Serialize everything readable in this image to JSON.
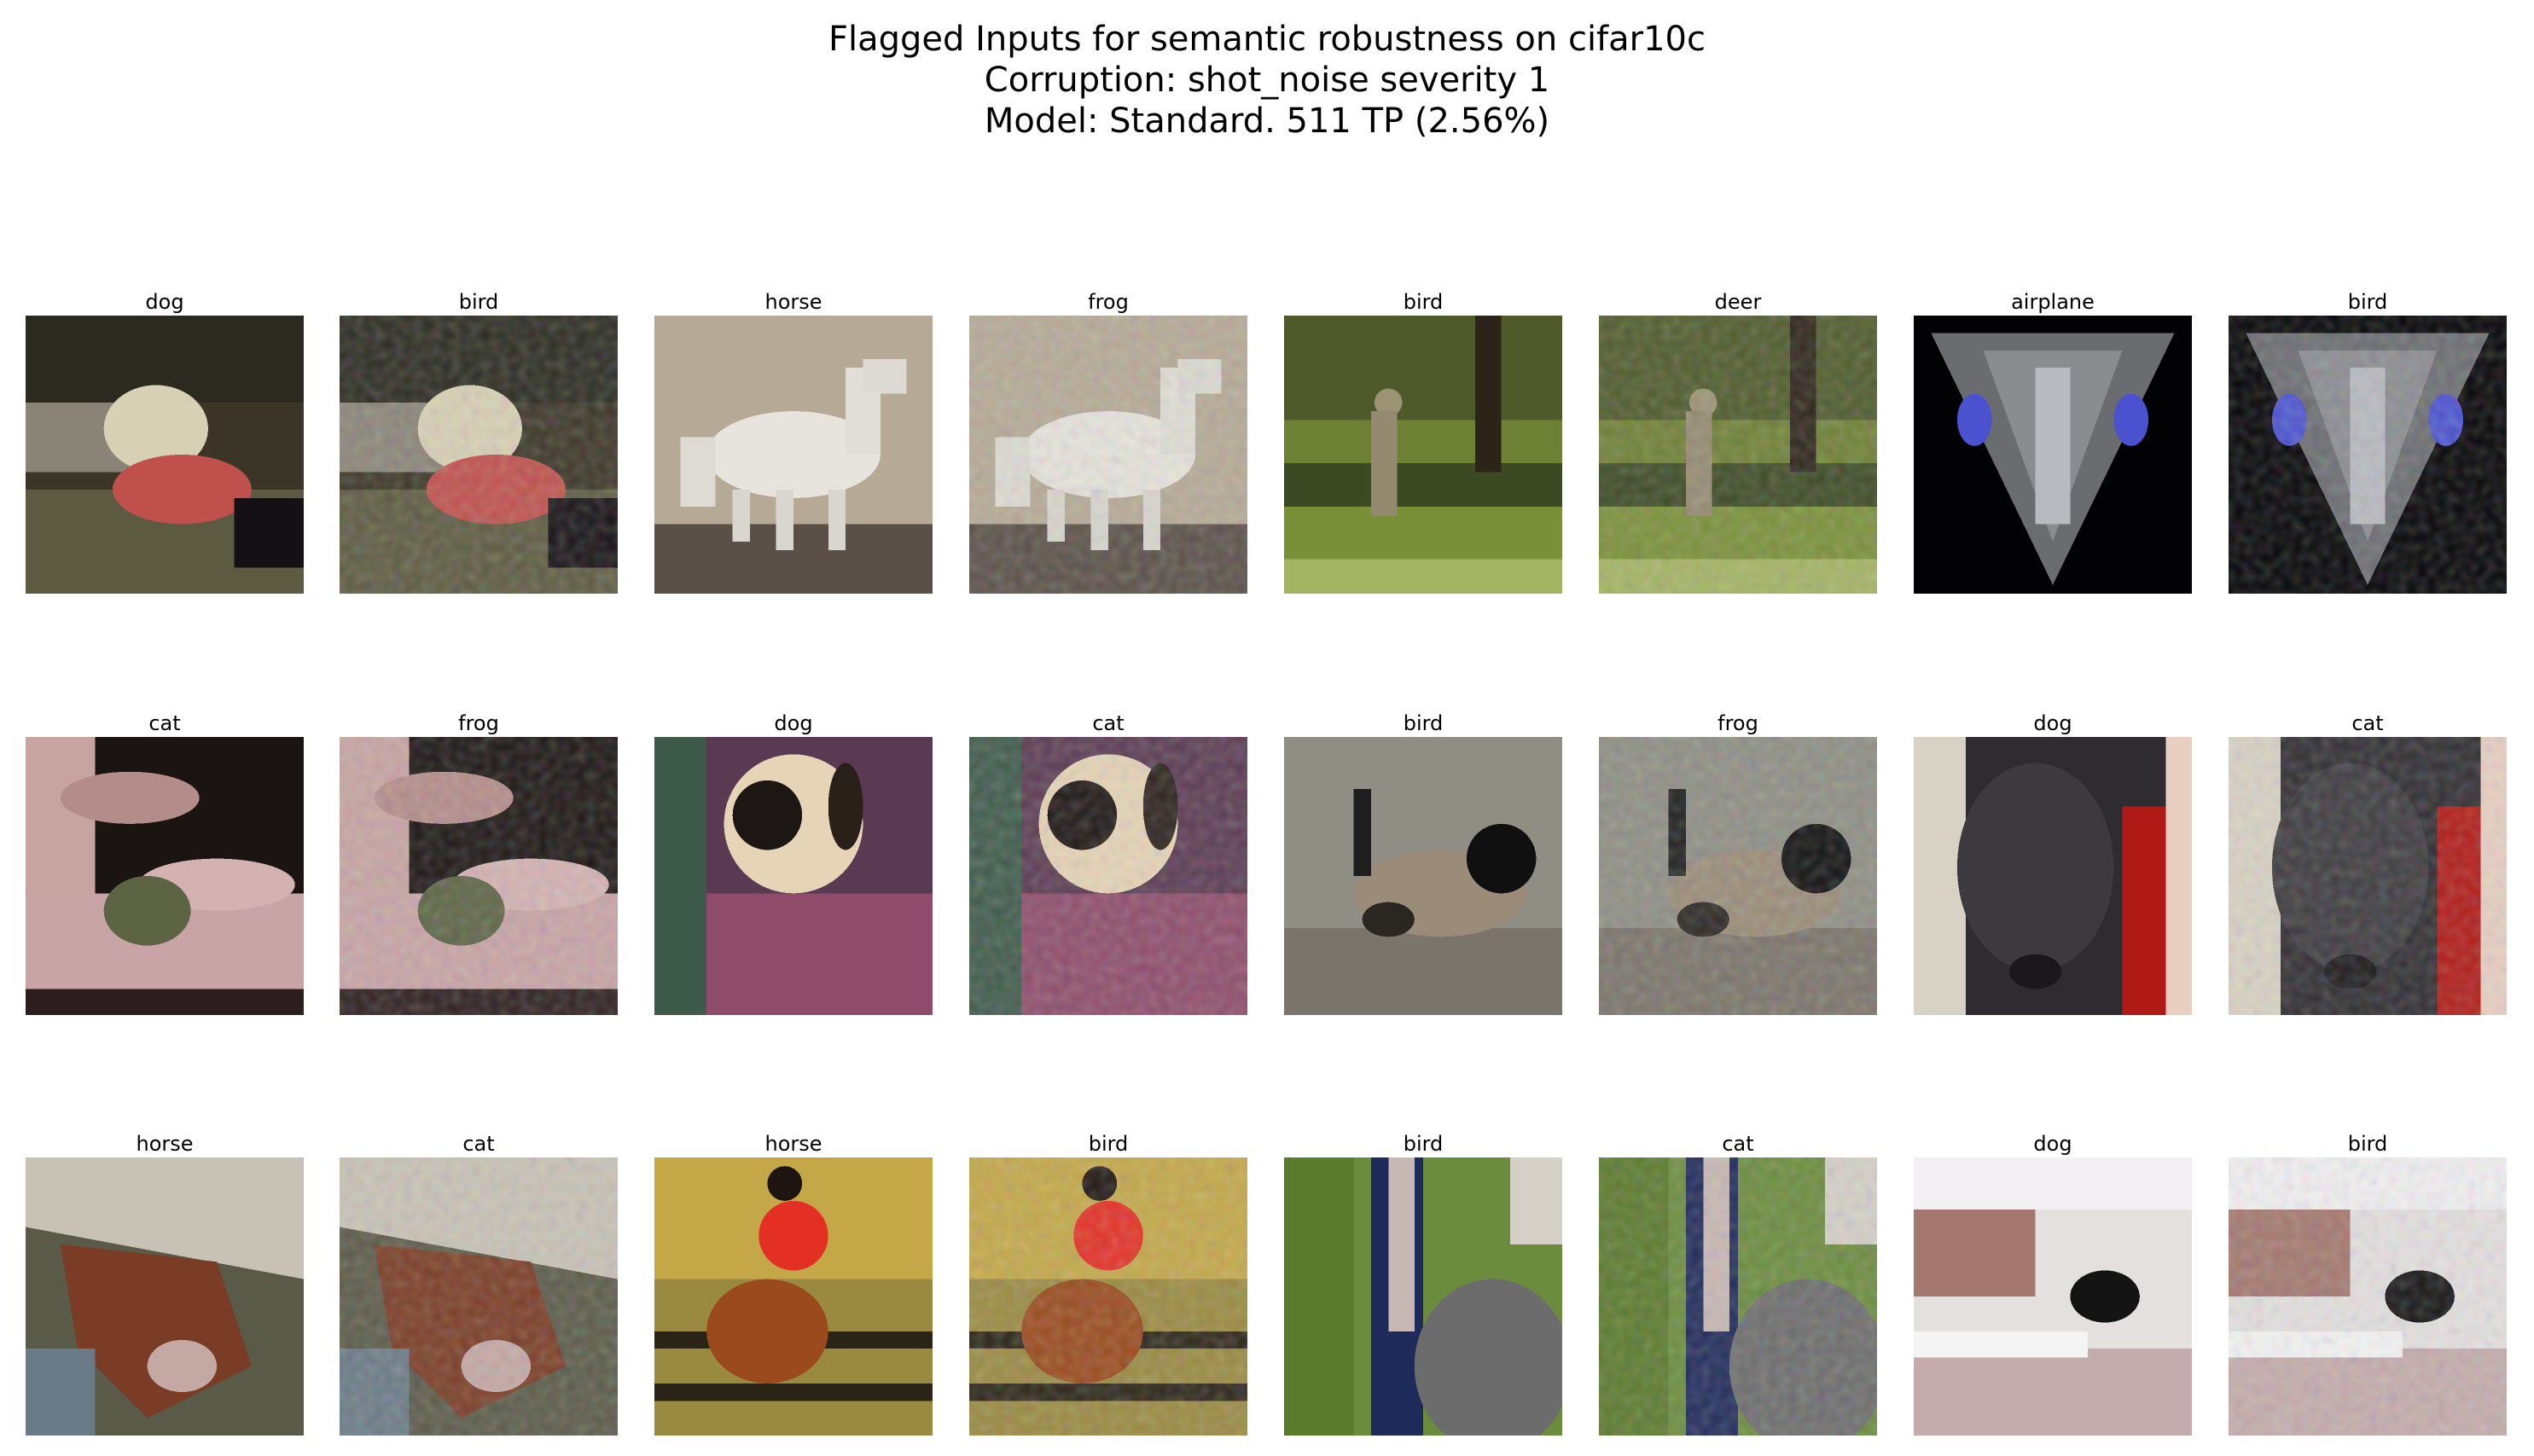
{
  "figure": {
    "title_lines": [
      "Flagged Inputs for semantic robustness on cifar10c",
      "Corruption: shot_noise severity 1",
      "Model: Standard. 511 TP (2.56%)"
    ]
  },
  "grid": {
    "rows": [
      [
        {
          "label": "dog",
          "scene": "dog-blanket",
          "noisy": false
        },
        {
          "label": "bird",
          "scene": "dog-blanket",
          "noisy": true
        },
        {
          "label": "horse",
          "scene": "white-horse",
          "noisy": false
        },
        {
          "label": "frog",
          "scene": "white-horse",
          "noisy": true
        },
        {
          "label": "bird",
          "scene": "deer-forest",
          "noisy": false
        },
        {
          "label": "deer",
          "scene": "deer-forest",
          "noisy": true
        },
        {
          "label": "airplane",
          "scene": "spaceship",
          "noisy": false
        },
        {
          "label": "bird",
          "scene": "spaceship",
          "noisy": true
        }
      ],
      [
        {
          "label": "cat",
          "scene": "frog-hand",
          "noisy": false
        },
        {
          "label": "frog",
          "scene": "frog-hand",
          "noisy": true
        },
        {
          "label": "dog",
          "scene": "cat-rug",
          "noisy": false
        },
        {
          "label": "cat",
          "scene": "cat-rug",
          "noisy": true
        },
        {
          "label": "bird",
          "scene": "goose-ground",
          "noisy": false
        },
        {
          "label": "frog",
          "scene": "goose-ground",
          "noisy": true
        },
        {
          "label": "dog",
          "scene": "dog-red-coat",
          "noisy": false
        },
        {
          "label": "cat",
          "scene": "dog-red-coat",
          "noisy": true
        }
      ],
      [
        {
          "label": "horse",
          "scene": "horse-head",
          "noisy": false
        },
        {
          "label": "cat",
          "scene": "horse-head",
          "noisy": true
        },
        {
          "label": "horse",
          "scene": "rider-fence",
          "noisy": false
        },
        {
          "label": "bird",
          "scene": "rider-fence",
          "noisy": true
        },
        {
          "label": "bird",
          "scene": "blur-green-blue",
          "noisy": false
        },
        {
          "label": "cat",
          "scene": "blur-green-blue",
          "noisy": true
        },
        {
          "label": "dog",
          "scene": "pale-room",
          "noisy": false
        },
        {
          "label": "bird",
          "scene": "pale-room",
          "noisy": true
        }
      ]
    ]
  }
}
